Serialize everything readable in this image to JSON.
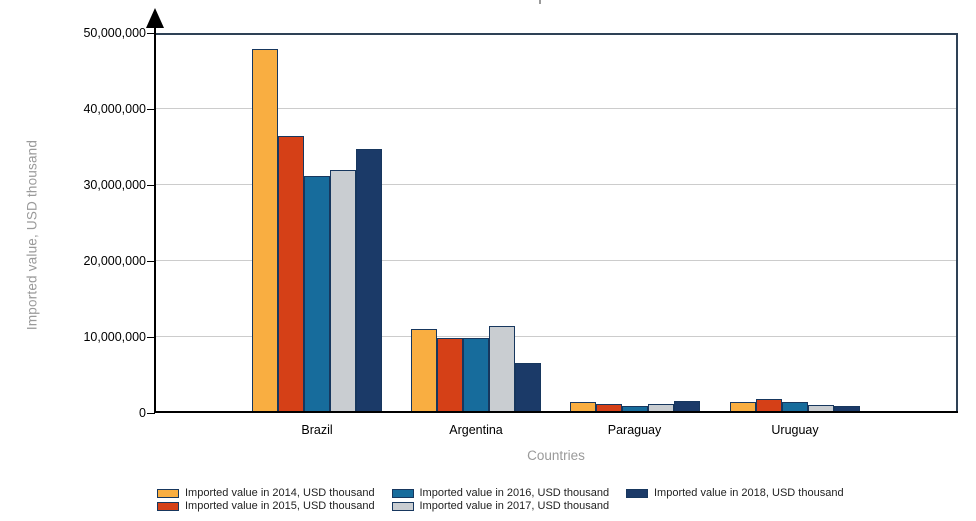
{
  "chart_data": {
    "type": "bar",
    "title": "",
    "ylabel": "Imported value, USD thousand",
    "xlabel": "Countries",
    "categories": [
      "Brazil",
      "Argentina",
      "Paraguay",
      "Uruguay"
    ],
    "series": [
      {
        "name": "Imported value in 2014, USD thousand",
        "year": "2014",
        "color": "#F9AE41",
        "values": [
          47900000,
          11100000,
          1450000,
          1450000
        ]
      },
      {
        "name": "Imported value in 2015, USD thousand",
        "year": "2015",
        "color": "#D54017",
        "values": [
          36500000,
          9900000,
          1150000,
          1800000
        ]
      },
      {
        "name": "Imported value in 2016, USD thousand",
        "year": "2016",
        "color": "#176C9C",
        "values": [
          31200000,
          9850000,
          950000,
          1500000
        ]
      },
      {
        "name": "Imported value in 2017, USD thousand",
        "year": "2017",
        "color": "#C9CDD1",
        "values": [
          32000000,
          11450000,
          1200000,
          1100000
        ]
      },
      {
        "name": "Imported value in 2018, USD thousand",
        "year": "2018",
        "color": "#1B3A68",
        "values": [
          34800000,
          6550000,
          1550000,
          950000
        ]
      }
    ],
    "ylim": [
      0,
      50000000
    ],
    "yticks": [
      {
        "value": 0,
        "label": "0"
      },
      {
        "value": 10000000,
        "label": "10,000,000"
      },
      {
        "value": 20000000,
        "label": "20,000,000"
      },
      {
        "value": 30000000,
        "label": "30,000,000"
      },
      {
        "value": 40000000,
        "label": "40,000,000"
      },
      {
        "value": 50000000,
        "label": "50,000,000"
      }
    ],
    "grid": true,
    "legend_position": "bottom"
  },
  "colors": {
    "bar_border": "#17375E",
    "plot_border": "#2E4156",
    "gridline": "#CCCCCC",
    "axis": "#000000",
    "axis_title_text": "#9A9A9A",
    "tick_text": "#000000",
    "legend_text": "#222222"
  }
}
